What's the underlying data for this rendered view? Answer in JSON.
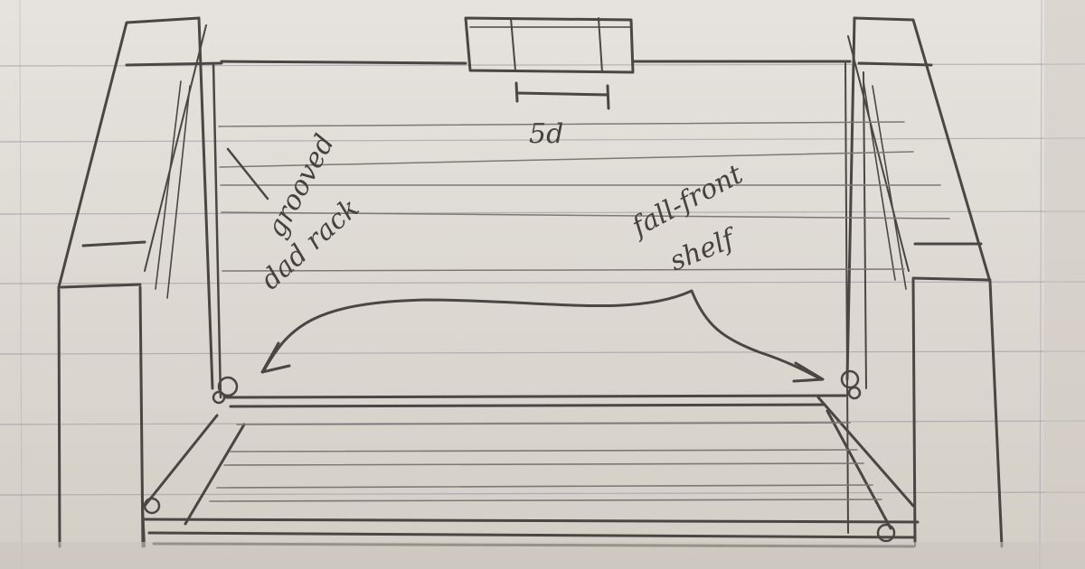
{
  "labels": {
    "dimension": "5d",
    "left_note_line1": "grooved",
    "left_note_line2": "dad rack",
    "right_note_line1": "fall-front",
    "right_note_line2": "shelf"
  },
  "colors": {
    "paper": "#e4e0da",
    "pencil": "#4a4643",
    "ruled_lines": "#9c98a6"
  }
}
